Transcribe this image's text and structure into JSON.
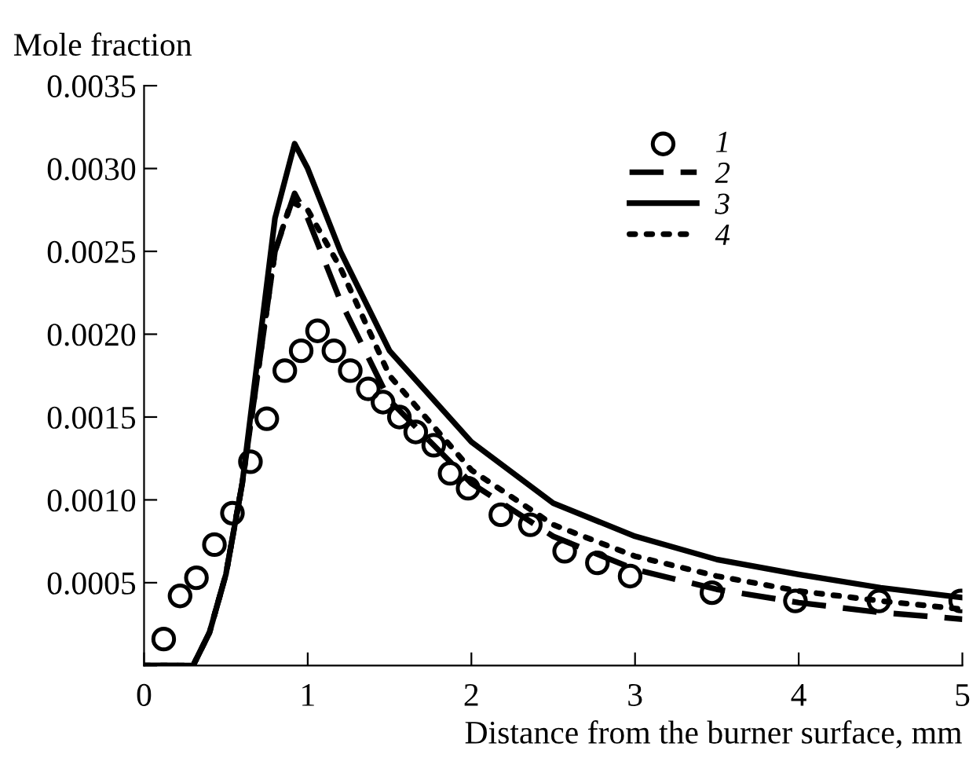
{
  "chart_data": {
    "type": "line",
    "ylabel": "Mole fraction",
    "xlabel": "Distance from the burner surface, mm",
    "xlim": [
      0,
      5
    ],
    "xticks": [
      0,
      1,
      2,
      3,
      4,
      5
    ],
    "ylim": [
      0,
      0.0035
    ],
    "yticks": [
      {
        "value": 0,
        "label": null
      },
      {
        "value": 0.0005,
        "label": "0.0005"
      },
      {
        "value": 0.001,
        "label": "0.0010"
      },
      {
        "value": 0.0015,
        "label": "0.0015"
      },
      {
        "value": 0.002,
        "label": "0.0020"
      },
      {
        "value": 0.0025,
        "label": "0.0025"
      },
      {
        "value": 0.003,
        "label": "0.0030"
      },
      {
        "value": 0.0035,
        "label": "0.0035"
      }
    ],
    "grid": false,
    "legend": "top right",
    "series": [
      {
        "name": "1",
        "type": "scatter",
        "marker": "circle",
        "color": "#000000",
        "x": [
          0.12,
          0.22,
          0.32,
          0.43,
          0.54,
          0.65,
          0.75,
          0.86,
          0.96,
          1.06,
          1.16,
          1.26,
          1.37,
          1.46,
          1.56,
          1.66,
          1.77,
          1.87,
          1.98,
          2.18,
          2.36,
          2.57,
          2.77,
          2.97,
          3.47,
          3.98,
          4.49,
          4.99
        ],
        "values": [
          0.00016,
          0.00042,
          0.00053,
          0.00073,
          0.00092,
          0.00123,
          0.00149,
          0.00178,
          0.0019,
          0.00202,
          0.0019,
          0.00178,
          0.00167,
          0.00159,
          0.0015,
          0.00141,
          0.00133,
          0.00116,
          0.00107,
          0.00091,
          0.00085,
          0.00069,
          0.00062,
          0.00054,
          0.00044,
          0.00039,
          0.00039,
          0.00039
        ]
      },
      {
        "name": "2",
        "line_style": "dashed",
        "color": "#000000",
        "x": [
          0,
          0.2,
          0.3,
          0.4,
          0.5,
          0.6,
          0.7,
          0.8,
          0.92,
          1.0,
          1.2,
          1.5,
          2.0,
          2.5,
          3.0,
          3.5,
          4.0,
          4.5,
          5.0
        ],
        "values": [
          0,
          0,
          0,
          0.0002,
          0.00055,
          0.0011,
          0.0018,
          0.0025,
          0.00285,
          0.0027,
          0.0022,
          0.0016,
          0.0011,
          0.00078,
          0.00058,
          0.00046,
          0.00038,
          0.00032,
          0.00028
        ]
      },
      {
        "name": "3",
        "line_style": "solid",
        "color": "#000000",
        "x": [
          0,
          0.2,
          0.3,
          0.4,
          0.5,
          0.6,
          0.7,
          0.8,
          0.92,
          1.0,
          1.2,
          1.5,
          2.0,
          2.5,
          3.0,
          3.5,
          4.0,
          4.5,
          5.0
        ],
        "values": [
          0,
          0,
          0,
          0.0002,
          0.00055,
          0.0011,
          0.0019,
          0.0027,
          0.00315,
          0.003,
          0.0025,
          0.0019,
          0.00135,
          0.00098,
          0.00078,
          0.00064,
          0.00055,
          0.00047,
          0.00041
        ]
      },
      {
        "name": "4",
        "line_style": "dotted",
        "color": "#000000",
        "x": [
          0,
          0.2,
          0.3,
          0.4,
          0.5,
          0.6,
          0.7,
          0.8,
          0.9,
          1.0,
          1.2,
          1.5,
          2.0,
          2.5,
          3.0,
          3.5,
          4.0,
          4.5,
          5.0
        ],
        "values": [
          0,
          0,
          0,
          0.0002,
          0.00055,
          0.0011,
          0.0018,
          0.0025,
          0.0028,
          0.00275,
          0.0024,
          0.00175,
          0.00118,
          0.00085,
          0.00066,
          0.00054,
          0.00045,
          0.00039,
          0.00034
        ]
      }
    ]
  }
}
